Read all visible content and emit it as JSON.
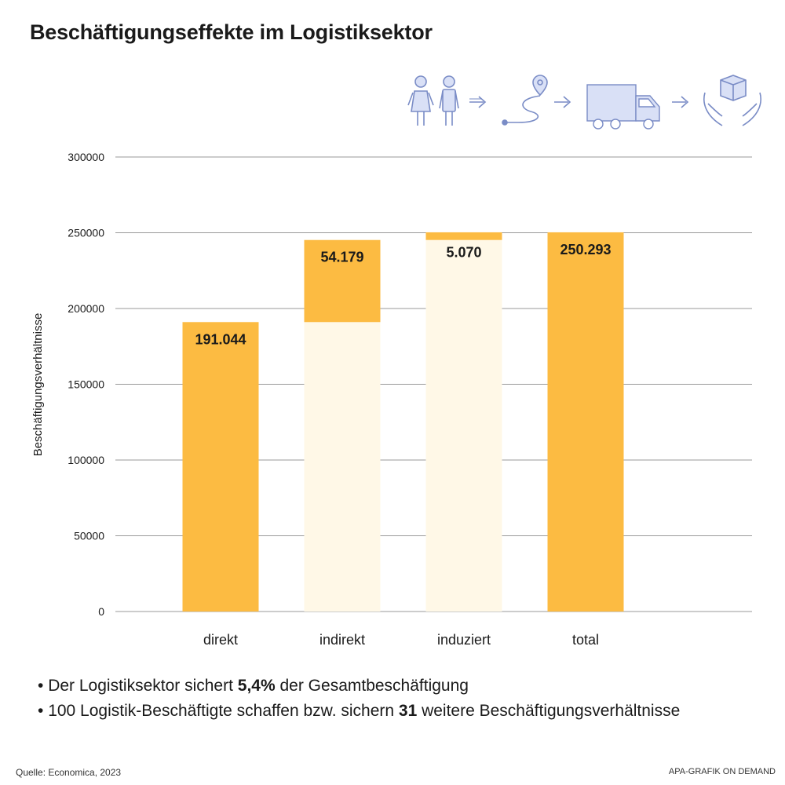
{
  "chart_data": {
    "type": "bar",
    "title": "Beschäftigungseffekte im Logistiksektor",
    "ylabel": "Beschäftigungsverhältnisse",
    "xlabel": "",
    "ylim": [
      0,
      300000
    ],
    "yticks": [
      0,
      50000,
      100000,
      150000,
      200000,
      250000,
      300000
    ],
    "ytick_labels": [
      "0",
      "50000",
      "100000",
      "150000",
      "200000",
      "250000",
      "300000"
    ],
    "grid": true,
    "categories": [
      "direkt",
      "indirekt",
      "induziert",
      "total"
    ],
    "bars": [
      {
        "category": "direkt",
        "base": 0,
        "value": 191044,
        "label": "191.044"
      },
      {
        "category": "indirekt",
        "base": 191044,
        "value": 54179,
        "label": "54.179"
      },
      {
        "category": "induziert",
        "base": 245223,
        "value": 5070,
        "label": "5.070"
      },
      {
        "category": "total",
        "base": 0,
        "value": 250293,
        "label": "250.293"
      }
    ],
    "colors": {
      "bar": "#fcbb42",
      "base_fill": "#fff8e7",
      "grid": "#9a9a9a",
      "icon": "#7a8cc6",
      "icon_fill": "#d9e0f6"
    }
  },
  "notes": [
    {
      "before": "Der Logistiksektor sichert ",
      "bold": "5,4%",
      "after": " der Gesamtbeschäftigung"
    },
    {
      "before": "100 Logistik-Beschäftigte schaffen bzw. sichern ",
      "bold": "31",
      "after": " weitere Beschäftigungsverhältnisse"
    }
  ],
  "source": "Quelle: Economica, 2023",
  "credit": "APA-GRAFIK ON DEMAND",
  "icons": [
    "people-icon",
    "arrow-right-icon",
    "route-pin-icon",
    "arrow-right-icon",
    "truck-icon",
    "arrow-right-icon",
    "hands-package-icon"
  ]
}
